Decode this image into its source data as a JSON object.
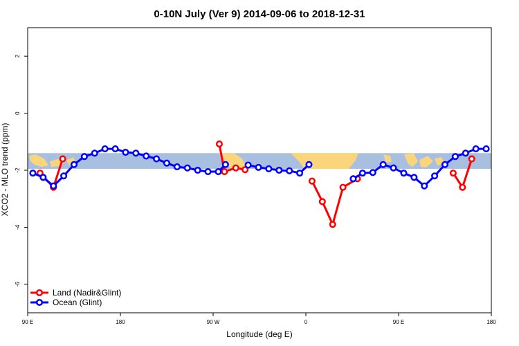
{
  "chart_data": {
    "type": "line",
    "title": "0-10N July (Ver 9)   2014-09-06 to 2018-12-31",
    "xlabel": "Longitude (deg E)",
    "ylabel": "XCO2 - MLO trend (ppm)",
    "xlim": [
      90,
      540
    ],
    "ylim": [
      -7,
      3
    ],
    "x_ticks": [
      {
        "value": 90,
        "label": "90 E"
      },
      {
        "value": 180,
        "label": "180"
      },
      {
        "value": 270,
        "label": "90 W"
      },
      {
        "value": 360,
        "label": "0"
      },
      {
        "value": 450,
        "label": "90 E"
      },
      {
        "value": 540,
        "label": "180"
      }
    ],
    "y_ticks": [
      {
        "value": 2,
        "label": "2"
      },
      {
        "value": 0,
        "label": "0"
      },
      {
        "value": -2,
        "label": "-2"
      },
      {
        "value": -4,
        "label": "-4"
      },
      {
        "value": -6,
        "label": "-6"
      }
    ],
    "legend_position": "bottom-left",
    "map_band": {
      "y_top": -1.4,
      "y_bottom": -1.95,
      "ocean_color": "#a9bfe0",
      "land_color": "#fbd57c"
    },
    "series": [
      {
        "name": "Land (Nadir&Glint)",
        "color": "#ff0000",
        "segments": [
          [
            [
              102,
              -2.1
            ],
            [
              115,
              -2.6
            ],
            [
              124,
              -1.6
            ]
          ],
          [
            [
              276,
              -1.08
            ],
            [
              281,
              -2.05
            ],
            [
              292,
              -1.92
            ],
            [
              301,
              -1.98
            ]
          ],
          [
            [
              366,
              -2.38
            ],
            [
              376,
              -3.1
            ],
            [
              386,
              -3.9
            ],
            [
              396,
              -2.6
            ],
            [
              410,
              -2.3
            ]
          ],
          [
            [
              503,
              -2.1
            ],
            [
              512,
              -2.6
            ],
            [
              521,
              -1.6
            ]
          ]
        ]
      },
      {
        "name": "Ocean (Glint)",
        "color": "#0000ff",
        "segments": [
          [
            [
              95,
              -2.1
            ],
            [
              105,
              -2.25
            ],
            [
              115,
              -2.55
            ],
            [
              125,
              -2.2
            ],
            [
              135,
              -1.8
            ],
            [
              145,
              -1.52
            ],
            [
              155,
              -1.4
            ],
            [
              165,
              -1.25
            ],
            [
              175,
              -1.25
            ],
            [
              185,
              -1.37
            ],
            [
              195,
              -1.4
            ],
            [
              205,
              -1.5
            ],
            [
              215,
              -1.6
            ],
            [
              225,
              -1.75
            ],
            [
              235,
              -1.88
            ],
            [
              245,
              -1.92
            ],
            [
              255,
              -2.0
            ],
            [
              265,
              -2.05
            ],
            [
              275,
              -2.05
            ],
            [
              282,
              -1.8
            ]
          ],
          [
            [
              304,
              -1.82
            ],
            [
              314,
              -1.9
            ],
            [
              324,
              -1.95
            ],
            [
              334,
              -2.0
            ],
            [
              344,
              -2.02
            ],
            [
              354,
              -2.1
            ],
            [
              363,
              -1.8
            ]
          ],
          [
            [
              406,
              -2.3
            ],
            [
              415,
              -2.1
            ],
            [
              425,
              -2.08
            ],
            [
              435,
              -1.8
            ],
            [
              445,
              -1.92
            ],
            [
              455,
              -2.1
            ],
            [
              465,
              -2.25
            ],
            [
              475,
              -2.55
            ],
            [
              485,
              -2.2
            ],
            [
              495,
              -1.8
            ],
            [
              505,
              -1.52
            ],
            [
              515,
              -1.4
            ],
            [
              525,
              -1.25
            ],
            [
              535,
              -1.25
            ]
          ]
        ]
      }
    ]
  }
}
